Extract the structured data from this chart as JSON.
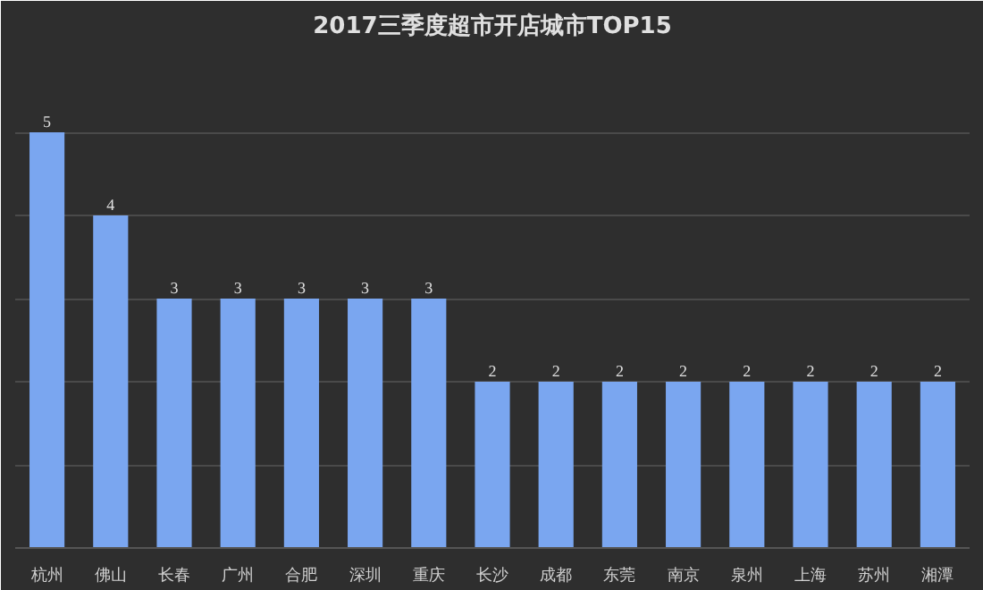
{
  "chart_data": {
    "type": "bar",
    "title": "2017三季度超市开店城市TOP15",
    "categories": [
      "杭州",
      "佛山",
      "长春",
      "广州",
      "合肥",
      "深圳",
      "重庆",
      "长沙",
      "成都",
      "东莞",
      "南京",
      "泉州",
      "上海",
      "苏州",
      "湘潭"
    ],
    "values": [
      5,
      4,
      3,
      3,
      3,
      3,
      3,
      2,
      2,
      2,
      2,
      2,
      2,
      2,
      2
    ],
    "color": "#7aa6f0",
    "data_labels": true,
    "grid": "y",
    "tick_labels": "x",
    "ylim": [
      0,
      6
    ],
    "yticks": [
      {
        "value": 0,
        "label": null
      },
      {
        "value": 1,
        "label": null
      },
      {
        "value": 2,
        "label": null
      },
      {
        "value": 3,
        "label": null
      },
      {
        "value": 4,
        "label": null
      },
      {
        "value": 5,
        "label": null
      },
      {
        "value": 6,
        "label": null
      }
    ]
  }
}
